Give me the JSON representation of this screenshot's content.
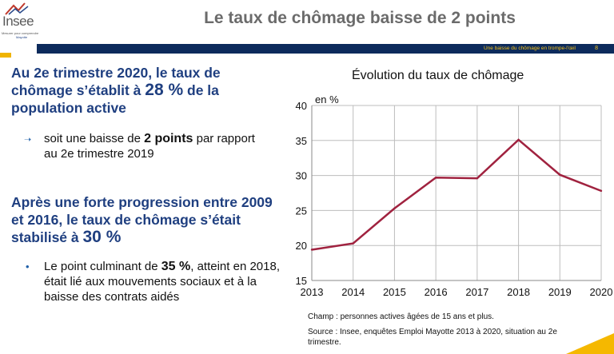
{
  "logo": {
    "word": "Insee",
    "tagline": "Mesurer pour comprendre",
    "region": "Mayotte"
  },
  "header": {
    "title": "Le taux de chômage baisse de 2 points",
    "subtitle": "Une baisse du chômage en trompe-l'œil",
    "page_number": "8"
  },
  "left": {
    "heading1": {
      "pre": "Au 2e trimestre 2020, le taux de chômage s’établit à ",
      "value": "28 %",
      "post": " de la population active"
    },
    "bullet1": {
      "pre": "soit une baisse de ",
      "bold": "2 points",
      "post": " par rapport au 2e trimestre 2019"
    },
    "heading2": {
      "pre": "Après une forte progression entre 2009 et 2016, le taux de chômage s’était stabilisé à ",
      "value": "30 %"
    },
    "bullet2": {
      "pre": "Le point culminant de ",
      "bold": "35 %",
      "post": ", atteint en 2018, était lié aux mouvements sociaux et à la baisse des contrats aidés"
    }
  },
  "chart_data": {
    "type": "line",
    "title": "Évolution du taux de chômage",
    "ylabel": "en %",
    "xlabel": "",
    "x": [
      2013,
      2014,
      2015,
      2016,
      2017,
      2018,
      2019,
      2020
    ],
    "series": [
      {
        "values": [
          19.4,
          20.3,
          25.3,
          29.7,
          29.6,
          35.1,
          30.1,
          27.8
        ],
        "color": "#a0223f"
      }
    ],
    "ylim": [
      15,
      40
    ],
    "yticks": [
      15,
      20,
      25,
      30,
      35,
      40
    ],
    "grid": true
  },
  "notes": {
    "champ": "Champ : personnes actives âgées de 15 ans et plus.",
    "source": "Source : Insee, enquêtes Emploi Mayotte 2013 à 2020, situation au 2e trimestre."
  }
}
